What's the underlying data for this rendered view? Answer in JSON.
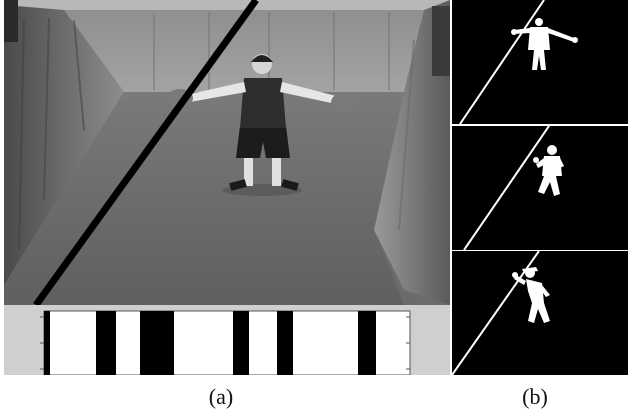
{
  "captions": {
    "a": "(a)",
    "b": "(b)"
  },
  "colors": {
    "line": "#000000",
    "background": "#ffffff",
    "silhouette": "#ffffff",
    "thumb_bg": "#000000"
  }
}
